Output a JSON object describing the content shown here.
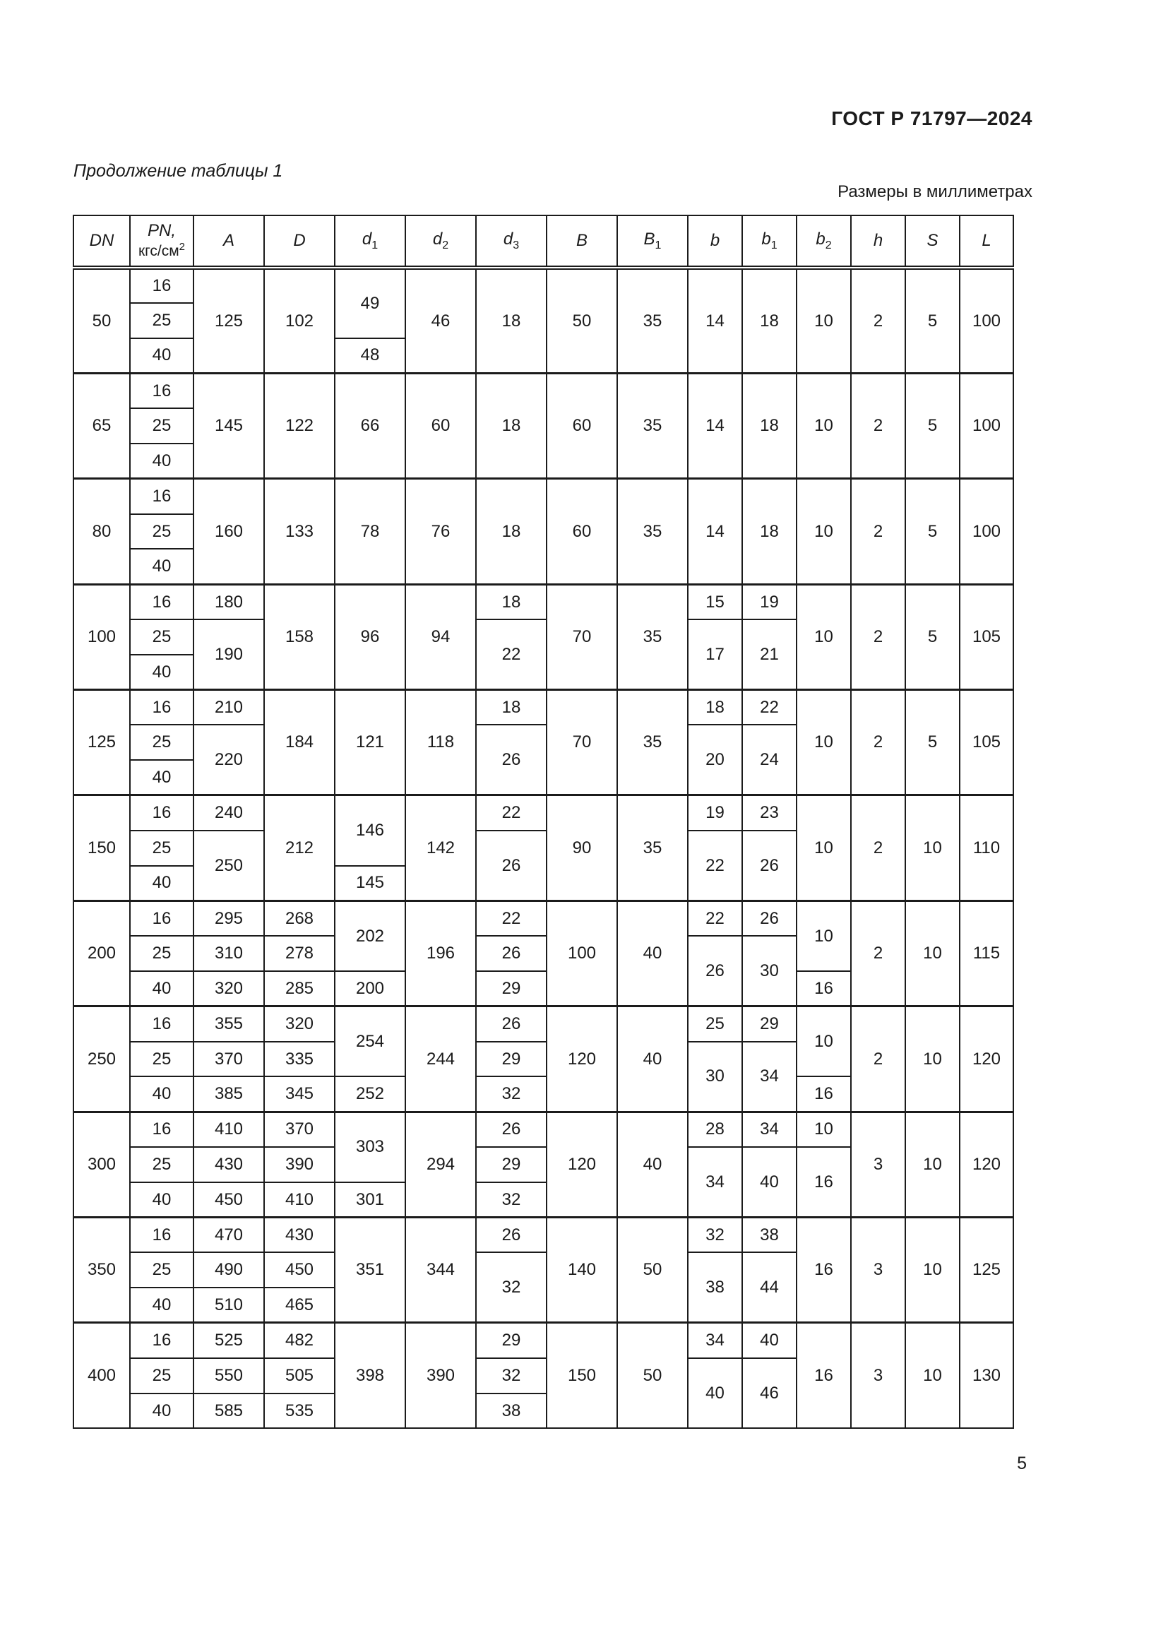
{
  "page": {
    "doc_number": "ГОСТ Р 71797—2024",
    "table_caption": "Продолжение таблицы 1",
    "units_note": "Размеры в миллиметрах",
    "page_number": "5"
  },
  "table": {
    "header": [
      {
        "n": "DN"
      },
      {
        "n": "PN,",
        "unit": "кгс/см^2"
      },
      {
        "n": "A"
      },
      {
        "n": "D"
      },
      {
        "n": "d",
        "s": "1"
      },
      {
        "n": "d",
        "s": "2"
      },
      {
        "n": "d",
        "s": "3"
      },
      {
        "n": "B"
      },
      {
        "n": "B",
        "s": "1"
      },
      {
        "n": "b"
      },
      {
        "n": "b",
        "s": "1"
      },
      {
        "n": "b",
        "s": "2"
      },
      {
        "n": "h"
      },
      {
        "n": "S"
      },
      {
        "n": "L"
      }
    ],
    "rows": [
      [
        {
          "t": "50",
          "rs": 3
        },
        {
          "t": "16"
        },
        {
          "t": "125",
          "rs": 3
        },
        {
          "t": "102",
          "rs": 3
        },
        {
          "t": "49",
          "rs": 2
        },
        {
          "t": "46",
          "rs": 3
        },
        {
          "t": "18",
          "rs": 3
        },
        {
          "t": "50",
          "rs": 3
        },
        {
          "t": "35",
          "rs": 3
        },
        {
          "t": "14",
          "rs": 3
        },
        {
          "t": "18",
          "rs": 3
        },
        {
          "t": "10",
          "rs": 3
        },
        {
          "t": "2",
          "rs": 3
        },
        {
          "t": "5",
          "rs": 3
        },
        {
          "t": "100",
          "rs": 3
        }
      ],
      [
        {
          "t": "25"
        }
      ],
      [
        {
          "t": "40"
        },
        {
          "t": "48"
        }
      ],
      [
        {
          "t": "65",
          "rs": 3
        },
        {
          "t": "16"
        },
        {
          "t": "145",
          "rs": 3
        },
        {
          "t": "122",
          "rs": 3
        },
        {
          "t": "66",
          "rs": 3
        },
        {
          "t": "60",
          "rs": 3
        },
        {
          "t": "18",
          "rs": 3
        },
        {
          "t": "60",
          "rs": 3
        },
        {
          "t": "35",
          "rs": 3
        },
        {
          "t": "14",
          "rs": 3
        },
        {
          "t": "18",
          "rs": 3
        },
        {
          "t": "10",
          "rs": 3
        },
        {
          "t": "2",
          "rs": 3
        },
        {
          "t": "5",
          "rs": 3
        },
        {
          "t": "100",
          "rs": 3
        }
      ],
      [
        {
          "t": "25"
        }
      ],
      [
        {
          "t": "40"
        }
      ],
      [
        {
          "t": "80",
          "rs": 3
        },
        {
          "t": "16"
        },
        {
          "t": "160",
          "rs": 3
        },
        {
          "t": "133",
          "rs": 3
        },
        {
          "t": "78",
          "rs": 3
        },
        {
          "t": "76",
          "rs": 3
        },
        {
          "t": "18",
          "rs": 3
        },
        {
          "t": "60",
          "rs": 3
        },
        {
          "t": "35",
          "rs": 3
        },
        {
          "t": "14",
          "rs": 3
        },
        {
          "t": "18",
          "rs": 3
        },
        {
          "t": "10",
          "rs": 3
        },
        {
          "t": "2",
          "rs": 3
        },
        {
          "t": "5",
          "rs": 3
        },
        {
          "t": "100",
          "rs": 3
        }
      ],
      [
        {
          "t": "25"
        }
      ],
      [
        {
          "t": "40"
        }
      ],
      [
        {
          "t": "100",
          "rs": 3
        },
        {
          "t": "16"
        },
        {
          "t": "180"
        },
        {
          "t": "158",
          "rs": 3
        },
        {
          "t": "96",
          "rs": 3
        },
        {
          "t": "94",
          "rs": 3
        },
        {
          "t": "18"
        },
        {
          "t": "70",
          "rs": 3
        },
        {
          "t": "35",
          "rs": 3
        },
        {
          "t": "15"
        },
        {
          "t": "19"
        },
        {
          "t": "10",
          "rs": 3
        },
        {
          "t": "2",
          "rs": 3
        },
        {
          "t": "5",
          "rs": 3
        },
        {
          "t": "105",
          "rs": 3
        }
      ],
      [
        {
          "t": "25"
        },
        {
          "t": "190",
          "rs": 2
        },
        {
          "t": "22",
          "rs": 2
        },
        {
          "t": "17",
          "rs": 2
        },
        {
          "t": "21",
          "rs": 2
        }
      ],
      [
        {
          "t": "40"
        }
      ],
      [
        {
          "t": "125",
          "rs": 3
        },
        {
          "t": "16"
        },
        {
          "t": "210"
        },
        {
          "t": "184",
          "rs": 3
        },
        {
          "t": "121",
          "rs": 3
        },
        {
          "t": "118",
          "rs": 3
        },
        {
          "t": "18"
        },
        {
          "t": "70",
          "rs": 3
        },
        {
          "t": "35",
          "rs": 3
        },
        {
          "t": "18"
        },
        {
          "t": "22"
        },
        {
          "t": "10",
          "rs": 3
        },
        {
          "t": "2",
          "rs": 3
        },
        {
          "t": "5",
          "rs": 3
        },
        {
          "t": "105",
          "rs": 3
        }
      ],
      [
        {
          "t": "25"
        },
        {
          "t": "220",
          "rs": 2
        },
        {
          "t": "26",
          "rs": 2
        },
        {
          "t": "20",
          "rs": 2
        },
        {
          "t": "24",
          "rs": 2
        }
      ],
      [
        {
          "t": "40"
        }
      ],
      [
        {
          "t": "150",
          "rs": 3
        },
        {
          "t": "16"
        },
        {
          "t": "240"
        },
        {
          "t": "212",
          "rs": 3
        },
        {
          "t": "146",
          "rs": 2
        },
        {
          "t": "142",
          "rs": 3
        },
        {
          "t": "22"
        },
        {
          "t": "90",
          "rs": 3
        },
        {
          "t": "35",
          "rs": 3
        },
        {
          "t": "19"
        },
        {
          "t": "23"
        },
        {
          "t": "10",
          "rs": 3
        },
        {
          "t": "2",
          "rs": 3
        },
        {
          "t": "10",
          "rs": 3
        },
        {
          "t": "110",
          "rs": 3
        }
      ],
      [
        {
          "t": "25"
        },
        {
          "t": "250",
          "rs": 2
        },
        {
          "t": "26",
          "rs": 2
        },
        {
          "t": "22",
          "rs": 2
        },
        {
          "t": "26",
          "rs": 2
        }
      ],
      [
        {
          "t": "40"
        },
        {
          "t": "145"
        }
      ],
      [
        {
          "t": "200",
          "rs": 3
        },
        {
          "t": "16"
        },
        {
          "t": "295"
        },
        {
          "t": "268"
        },
        {
          "t": "202",
          "rs": 2
        },
        {
          "t": "196",
          "rs": 3
        },
        {
          "t": "22"
        },
        {
          "t": "100",
          "rs": 3
        },
        {
          "t": "40",
          "rs": 3
        },
        {
          "t": "22"
        },
        {
          "t": "26"
        },
        {
          "t": "10",
          "rs": 2
        },
        {
          "t": "2",
          "rs": 3
        },
        {
          "t": "10",
          "rs": 3
        },
        {
          "t": "115",
          "rs": 3
        }
      ],
      [
        {
          "t": "25"
        },
        {
          "t": "310"
        },
        {
          "t": "278"
        },
        {
          "t": "26"
        },
        {
          "t": "26",
          "rs": 2
        },
        {
          "t": "30",
          "rs": 2
        }
      ],
      [
        {
          "t": "40"
        },
        {
          "t": "320"
        },
        {
          "t": "285"
        },
        {
          "t": "200"
        },
        {
          "t": "29"
        },
        {
          "t": "16"
        }
      ],
      [
        {
          "t": "250",
          "rs": 3
        },
        {
          "t": "16"
        },
        {
          "t": "355"
        },
        {
          "t": "320"
        },
        {
          "t": "254",
          "rs": 2
        },
        {
          "t": "244",
          "rs": 3
        },
        {
          "t": "26"
        },
        {
          "t": "120",
          "rs": 3
        },
        {
          "t": "40",
          "rs": 3
        },
        {
          "t": "25"
        },
        {
          "t": "29"
        },
        {
          "t": "10",
          "rs": 2
        },
        {
          "t": "2",
          "rs": 3
        },
        {
          "t": "10",
          "rs": 3
        },
        {
          "t": "120",
          "rs": 3
        }
      ],
      [
        {
          "t": "25"
        },
        {
          "t": "370"
        },
        {
          "t": "335"
        },
        {
          "t": "29"
        },
        {
          "t": "30",
          "rs": 2
        },
        {
          "t": "34",
          "rs": 2
        }
      ],
      [
        {
          "t": "40"
        },
        {
          "t": "385"
        },
        {
          "t": "345"
        },
        {
          "t": "252"
        },
        {
          "t": "32"
        },
        {
          "t": "16"
        }
      ],
      [
        {
          "t": "300",
          "rs": 3
        },
        {
          "t": "16"
        },
        {
          "t": "410"
        },
        {
          "t": "370"
        },
        {
          "t": "303",
          "rs": 2
        },
        {
          "t": "294",
          "rs": 3
        },
        {
          "t": "26"
        },
        {
          "t": "120",
          "rs": 3
        },
        {
          "t": "40",
          "rs": 3
        },
        {
          "t": "28"
        },
        {
          "t": "34"
        },
        {
          "t": "10"
        },
        {
          "t": "3",
          "rs": 3
        },
        {
          "t": "10",
          "rs": 3
        },
        {
          "t": "120",
          "rs": 3
        }
      ],
      [
        {
          "t": "25"
        },
        {
          "t": "430"
        },
        {
          "t": "390"
        },
        {
          "t": "29"
        },
        {
          "t": "34",
          "rs": 2
        },
        {
          "t": "40",
          "rs": 2
        },
        {
          "t": "16",
          "rs": 2
        }
      ],
      [
        {
          "t": "40"
        },
        {
          "t": "450"
        },
        {
          "t": "410"
        },
        {
          "t": "301"
        },
        {
          "t": "32"
        }
      ],
      [
        {
          "t": "350",
          "rs": 3
        },
        {
          "t": "16"
        },
        {
          "t": "470"
        },
        {
          "t": "430"
        },
        {
          "t": "351",
          "rs": 3
        },
        {
          "t": "344",
          "rs": 3
        },
        {
          "t": "26"
        },
        {
          "t": "140",
          "rs": 3
        },
        {
          "t": "50",
          "rs": 3
        },
        {
          "t": "32"
        },
        {
          "t": "38"
        },
        {
          "t": "16",
          "rs": 3
        },
        {
          "t": "3",
          "rs": 3
        },
        {
          "t": "10",
          "rs": 3
        },
        {
          "t": "125",
          "rs": 3
        }
      ],
      [
        {
          "t": "25"
        },
        {
          "t": "490"
        },
        {
          "t": "450"
        },
        {
          "t": "32",
          "rs": 2
        },
        {
          "t": "38",
          "rs": 2
        },
        {
          "t": "44",
          "rs": 2
        }
      ],
      [
        {
          "t": "40"
        },
        {
          "t": "510"
        },
        {
          "t": "465"
        }
      ],
      [
        {
          "t": "400",
          "rs": 3
        },
        {
          "t": "16"
        },
        {
          "t": "525"
        },
        {
          "t": "482"
        },
        {
          "t": "398",
          "rs": 3
        },
        {
          "t": "390",
          "rs": 3
        },
        {
          "t": "29"
        },
        {
          "t": "150",
          "rs": 3
        },
        {
          "t": "50",
          "rs": 3
        },
        {
          "t": "34"
        },
        {
          "t": "40"
        },
        {
          "t": "16",
          "rs": 3
        },
        {
          "t": "3",
          "rs": 3
        },
        {
          "t": "10",
          "rs": 3
        },
        {
          "t": "130",
          "rs": 3
        }
      ],
      [
        {
          "t": "25"
        },
        {
          "t": "550"
        },
        {
          "t": "505"
        },
        {
          "t": "32"
        },
        {
          "t": "40",
          "rs": 2
        },
        {
          "t": "46",
          "rs": 2
        }
      ],
      [
        {
          "t": "40"
        },
        {
          "t": "585"
        },
        {
          "t": "535"
        },
        {
          "t": "38"
        }
      ]
    ]
  }
}
